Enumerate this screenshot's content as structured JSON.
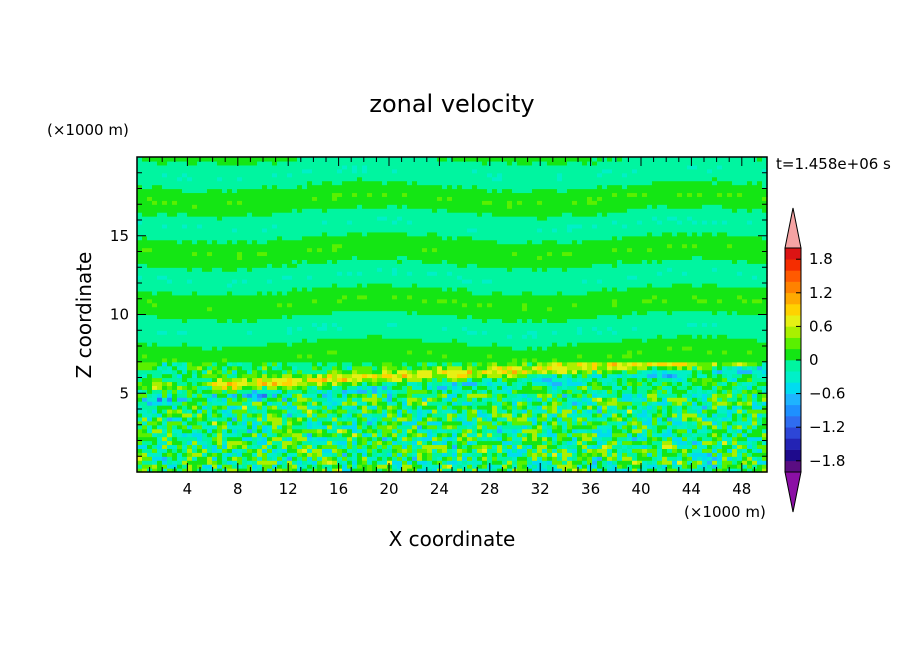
{
  "chart_data": {
    "type": "heatmap",
    "title": "zonal velocity",
    "xlabel": "X coordinate",
    "ylabel": "Z coordinate",
    "x_unit": "(×1000 m)",
    "y_unit": "(×1000 m)",
    "time_label": "t=1.458e+06 s",
    "xlim": [
      0,
      50
    ],
    "ylim": [
      0,
      20
    ],
    "xticks": [
      4,
      8,
      12,
      16,
      20,
      24,
      28,
      32,
      36,
      40,
      44,
      48
    ],
    "yticks": [
      5,
      10,
      15
    ],
    "colorbar": {
      "levels": [
        -2.0,
        -1.8,
        -1.6,
        -1.4,
        -1.2,
        -1.0,
        -0.8,
        -0.6,
        -0.4,
        -0.2,
        0.0,
        0.2,
        0.4,
        0.6,
        0.8,
        1.0,
        1.2,
        1.4,
        1.6,
        1.8,
        2.0
      ],
      "colors": [
        "#5a0d82",
        "#1e0a8c",
        "#2323b4",
        "#2d46d7",
        "#2f6df0",
        "#1e90ff",
        "#1eb4ff",
        "#00dcf0",
        "#00f0c8",
        "#00f5a0",
        "#14e614",
        "#5af000",
        "#aaf000",
        "#e6f014",
        "#ffd200",
        "#ffaa00",
        "#ff8200",
        "#ff5a00",
        "#f52d00",
        "#dc1414"
      ],
      "under_color": "#8b0fa5",
      "over_color": "#f5a3a3",
      "tick_labels": [
        "1.8",
        "1.2",
        "0.6",
        "0",
        "−0.6",
        "−1.2",
        "−1.8"
      ],
      "tick_values": [
        1.8,
        1.2,
        0.6,
        0,
        -0.6,
        -1.2,
        -1.8
      ]
    },
    "field_description_bands": [
      {
        "z_range": [
          0,
          5
        ],
        "pattern": "turbulent mix of green, yellow and cyan",
        "value_range": [
          -0.6,
          0.8
        ]
      },
      {
        "z_range": [
          5,
          6
        ],
        "pattern": "yellow/orange jet band rising toward east",
        "value_range": [
          0.4,
          0.8
        ]
      },
      {
        "z_range": [
          5,
          7
        ],
        "pattern": "cyan/blue streaks",
        "value_range": [
          -0.8,
          -0.2
        ]
      },
      {
        "z_range": [
          7,
          20
        ],
        "pattern": "alternating green and aqua layers",
        "value_range": [
          -0.2,
          0.2
        ]
      }
    ]
  }
}
